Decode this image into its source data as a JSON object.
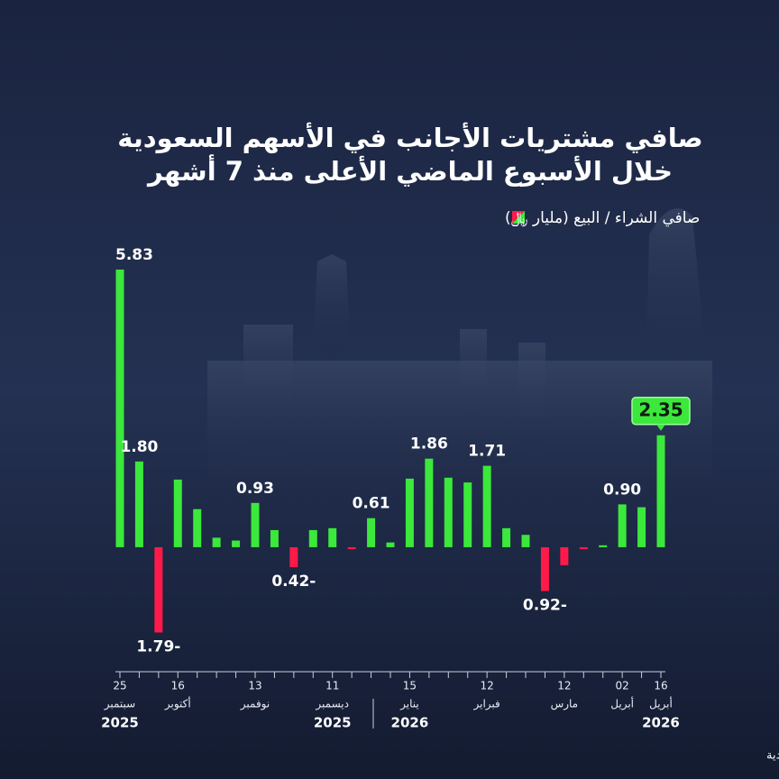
{
  "chart_data": {
    "type": "bar",
    "title_lines": [
      "صافي مشتريات الأجانب في الأسهم السعودية",
      "خلال الأسبوع الماضي الأعلى منذ 7 أشهر"
    ],
    "legend_label": "صافي الشراء / البيع (مليار ﷼)",
    "source": "المصدر: بيانات تداول السعودية",
    "categories": [
      "25",
      null,
      null,
      "16",
      null,
      null,
      null,
      "13",
      null,
      null,
      null,
      "11",
      null,
      null,
      null,
      "15",
      null,
      null,
      null,
      "12",
      null,
      null,
      null,
      "12",
      null,
      null,
      "02",
      null,
      "16"
    ],
    "category_months": [
      "سبتمبر",
      null,
      null,
      "أكتوبر",
      null,
      null,
      null,
      "نوفمبر",
      null,
      null,
      null,
      "ديسمبر",
      null,
      null,
      null,
      "يناير",
      null,
      null,
      null,
      "فبراير",
      null,
      null,
      null,
      "مارس",
      null,
      null,
      "أبريل",
      null,
      "أبريل"
    ],
    "category_years": [
      "2025",
      null,
      null,
      null,
      null,
      null,
      null,
      null,
      null,
      null,
      null,
      "2025",
      null,
      null,
      null,
      "2026",
      null,
      null,
      null,
      null,
      null,
      null,
      null,
      null,
      null,
      null,
      null,
      null,
      "2026"
    ],
    "values": [
      5.83,
      1.8,
      -1.79,
      1.42,
      0.8,
      0.2,
      0.14,
      0.93,
      0.36,
      -0.42,
      0.36,
      0.4,
      -0.04,
      0.61,
      0.1,
      1.44,
      1.86,
      1.46,
      1.36,
      1.71,
      0.4,
      0.26,
      -0.92,
      -0.38,
      -0.04,
      0.04,
      0.9,
      0.84,
      2.35
    ],
    "value_labels": [
      "5.83",
      "1.80",
      "1.79-",
      null,
      null,
      null,
      null,
      "0.93",
      null,
      "0.42-",
      null,
      null,
      null,
      "0.61",
      null,
      null,
      "1.86",
      null,
      null,
      "1.71",
      null,
      null,
      "0.92-",
      null,
      null,
      null,
      "0.90",
      null,
      "2.35"
    ],
    "positive_color": "#3be83b",
    "negative_color": "#ff1a4a",
    "highlight_index": 28,
    "ylim": [
      -2.5,
      6
    ]
  }
}
